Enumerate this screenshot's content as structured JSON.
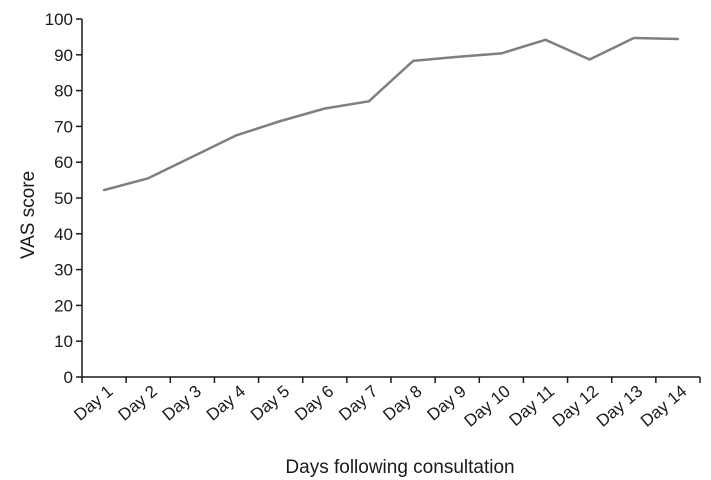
{
  "chart_data": {
    "type": "line",
    "title": "",
    "xlabel": "Days following consultation",
    "ylabel": "VAS score",
    "categories": [
      "Day 1",
      "Day 2",
      "Day 3",
      "Day 4",
      "Day 5",
      "Day 6",
      "Day 7",
      "Day 8",
      "Day 9",
      "Day 10",
      "Day 11",
      "Day 12",
      "Day 13",
      "Day 14"
    ],
    "ylim": [
      0,
      100
    ],
    "yticks": [
      "0",
      "10",
      "20",
      "30",
      "40",
      "50",
      "60",
      "70",
      "80",
      "90",
      "100"
    ],
    "grid": false,
    "series": [
      {
        "color": "#7f7f7f",
        "values": [
          52.2,
          55.5,
          61.5,
          67.5,
          71.5,
          75.0,
          77.0,
          88.3,
          89.4,
          90.4,
          94.2,
          88.7,
          94.7,
          94.4
        ]
      }
    ]
  }
}
